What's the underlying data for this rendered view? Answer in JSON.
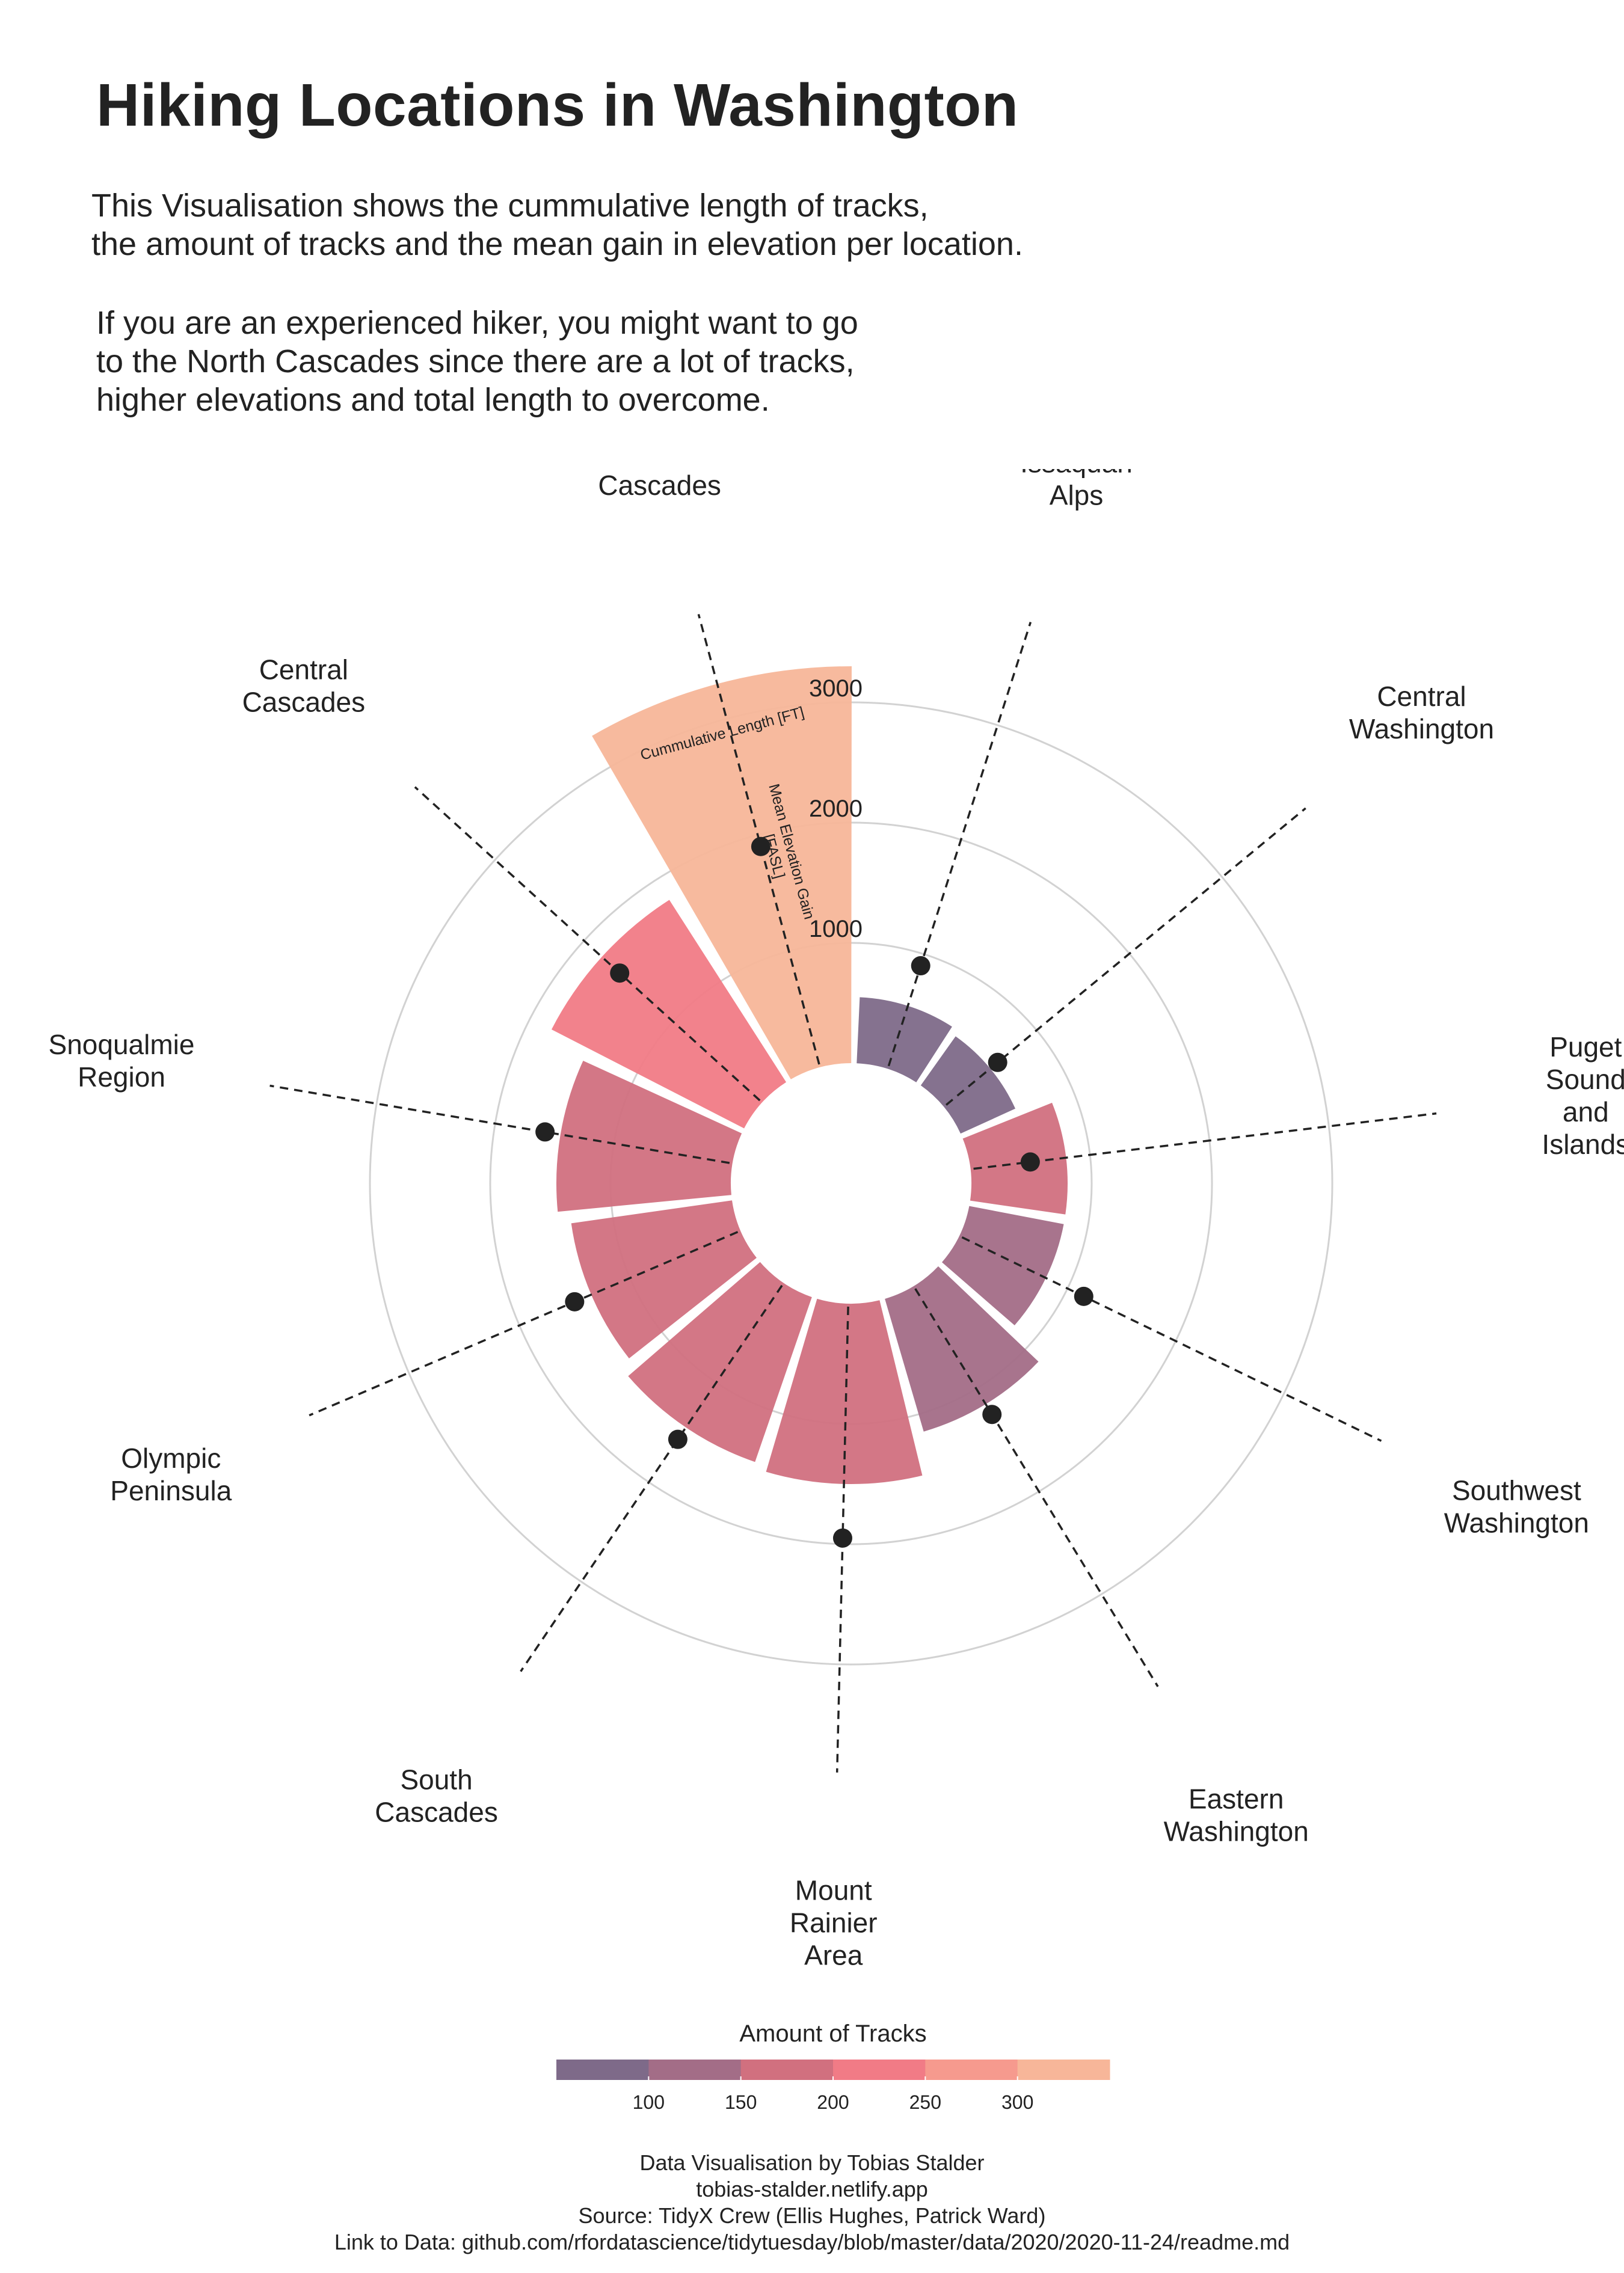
{
  "title": "Hiking Locations in Washington",
  "intro": "This Visualisation shows the cummulative length of tracks,\nthe amount of tracks and the mean gain in elevation per location.",
  "advice": "If you are an experienced hiker, you might want to go\nto the North Cascades since there are a lot of tracks,\nhigher elevations and total length to overcome.",
  "footer": {
    "author": "Data Visualisation by Tobias Stalder",
    "site": "tobias-stalder.netlify.app",
    "source": "Source: TidyX Crew (Ellis Hughes, Patrick Ward)",
    "link": "Link to Data: github.com/rfordatascience/tidytuesday/blob/master/data/2020/2020-11-24/readme.md"
  },
  "chart_data": {
    "type": "polar-bar",
    "bar_measure_label": "Cummulative Length [FT]",
    "point_measure_label": "Mean Elevation Gain\n[FASL]",
    "radial_ticks": [
      1000,
      2000,
      3000
    ],
    "radial_max": 3000,
    "categories": [
      "North\nCascades",
      "Issaquah\nAlps",
      "Central\nWashington",
      "Puget\nSound\nand\nIslands",
      "Southwest\nWashington",
      "Eastern\nWashington",
      "Mount\nRainier\nArea",
      "South\nCascades",
      "Olympic\nPeninsula",
      "Snoqualmie\nRegion",
      "Central\nCascades"
    ],
    "cumulative_length": [
      3300,
      550,
      500,
      800,
      800,
      1150,
      1500,
      1450,
      1350,
      1450,
      1800
    ],
    "tracks": [
      330,
      65,
      55,
      190,
      110,
      145,
      190,
      175,
      180,
      195,
      215
    ],
    "mean_elevation_gain": [
      1900,
      900,
      580,
      500,
      1150,
      1250,
      1950,
      1570,
      1500,
      1580,
      1600
    ],
    "legend": {
      "title": "Amount of Tracks",
      "range": [
        50,
        350
      ],
      "ticks": [
        100,
        150,
        200,
        250,
        300
      ],
      "colors": [
        "#7e6a89",
        "#a36d87",
        "#d1707f",
        "#f17b86",
        "#f69a8e",
        "#f7b699"
      ]
    }
  }
}
